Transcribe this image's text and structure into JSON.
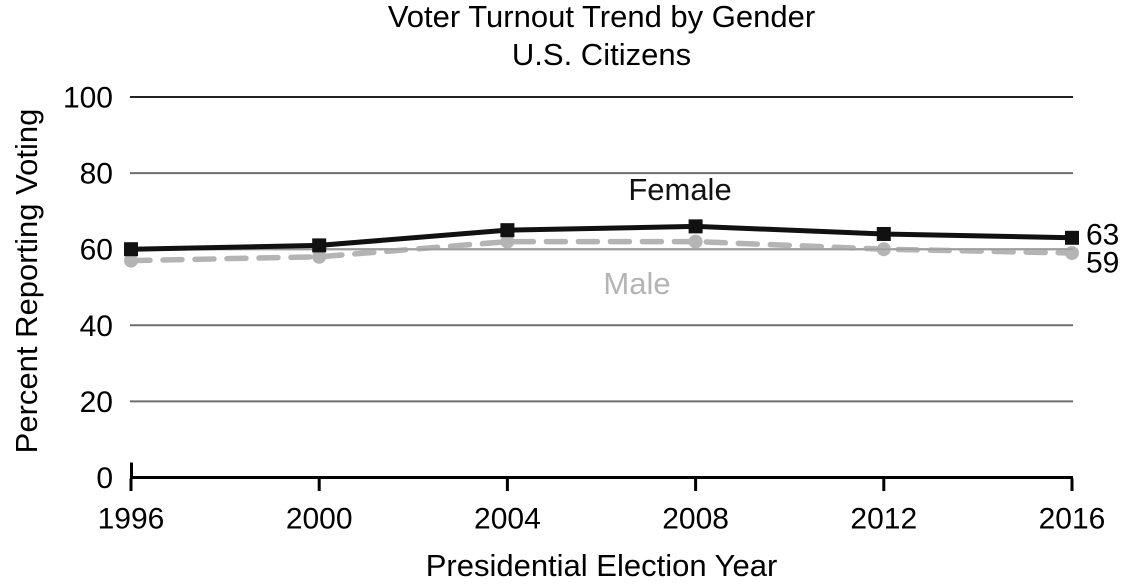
{
  "chart_data": {
    "type": "line",
    "title": "Voter Turnout Trend by Gender",
    "subtitle": "U.S. Citizens",
    "xlabel": "Presidential Election Year",
    "ylabel": "Percent Reporting Voting",
    "categories": [
      "1996",
      "2000",
      "2004",
      "2008",
      "2012",
      "2016"
    ],
    "yticks": [
      0,
      20,
      40,
      60,
      80,
      100
    ],
    "ylim": [
      0,
      100
    ],
    "grid": "horizontal",
    "legend_position": "inline-labels",
    "axis_color": "#000000",
    "gridline_color": "#6e6e6e",
    "series": [
      {
        "name": "Female",
        "values": [
          60,
          61,
          65,
          66,
          64,
          63
        ],
        "color": "#111111",
        "line_style": "solid",
        "marker": "square",
        "end_label": "63"
      },
      {
        "name": "Male",
        "values": [
          57,
          58,
          62,
          62,
          60,
          59
        ],
        "color": "#b4b4b4",
        "line_style": "dashed",
        "marker": "circle",
        "end_label": "59"
      }
    ]
  }
}
